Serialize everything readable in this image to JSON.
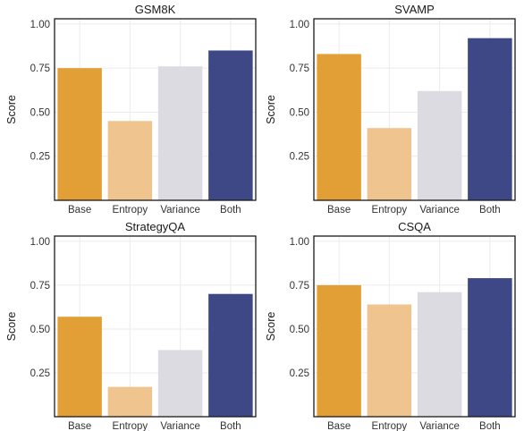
{
  "chart_data": [
    {
      "type": "bar",
      "title": "GSM8K",
      "ylabel": "Score",
      "categories": [
        "Base",
        "Entropy",
        "Variance",
        "Both"
      ],
      "values": [
        0.75,
        0.45,
        0.76,
        0.85
      ],
      "colors": [
        "#E19F35",
        "#EFC48F",
        "#DCDBE1",
        "#3E4886"
      ],
      "ylim": [
        0.0,
        1.03
      ],
      "yticks": [
        0.25,
        0.5,
        0.75,
        1.0
      ],
      "ytick_labels": [
        "0.25",
        "0.50",
        "0.75",
        "1.00"
      ],
      "grid": true
    },
    {
      "type": "bar",
      "title": "SVAMP",
      "ylabel": "Score",
      "categories": [
        "Base",
        "Entropy",
        "Variance",
        "Both"
      ],
      "values": [
        0.83,
        0.41,
        0.62,
        0.92
      ],
      "colors": [
        "#E19F35",
        "#EFC48F",
        "#DCDBE1",
        "#3E4886"
      ],
      "ylim": [
        0.0,
        1.03
      ],
      "yticks": [
        0.25,
        0.5,
        0.75,
        1.0
      ],
      "ytick_labels": [
        "0.25",
        "0.50",
        "0.75",
        "1.00"
      ],
      "grid": true
    },
    {
      "type": "bar",
      "title": "StrategyQA",
      "ylabel": "Score",
      "categories": [
        "Base",
        "Entropy",
        "Variance",
        "Both"
      ],
      "values": [
        0.57,
        0.17,
        0.38,
        0.7
      ],
      "colors": [
        "#E19F35",
        "#EFC48F",
        "#DCDBE1",
        "#3E4886"
      ],
      "ylim": [
        0.0,
        1.03
      ],
      "yticks": [
        0.25,
        0.5,
        0.75,
        1.0
      ],
      "ytick_labels": [
        "0.25",
        "0.50",
        "0.75",
        "1.00"
      ],
      "grid": true
    },
    {
      "type": "bar",
      "title": "CSQA",
      "ylabel": "Score",
      "categories": [
        "Base",
        "Entropy",
        "Variance",
        "Both"
      ],
      "values": [
        0.75,
        0.64,
        0.71,
        0.79
      ],
      "colors": [
        "#E19F35",
        "#EFC48F",
        "#DCDBE1",
        "#3E4886"
      ],
      "ylim": [
        0.0,
        1.03
      ],
      "yticks": [
        0.25,
        0.5,
        0.75,
        1.0
      ],
      "ytick_labels": [
        "0.25",
        "0.50",
        "0.75",
        "1.00"
      ],
      "grid": true
    }
  ]
}
